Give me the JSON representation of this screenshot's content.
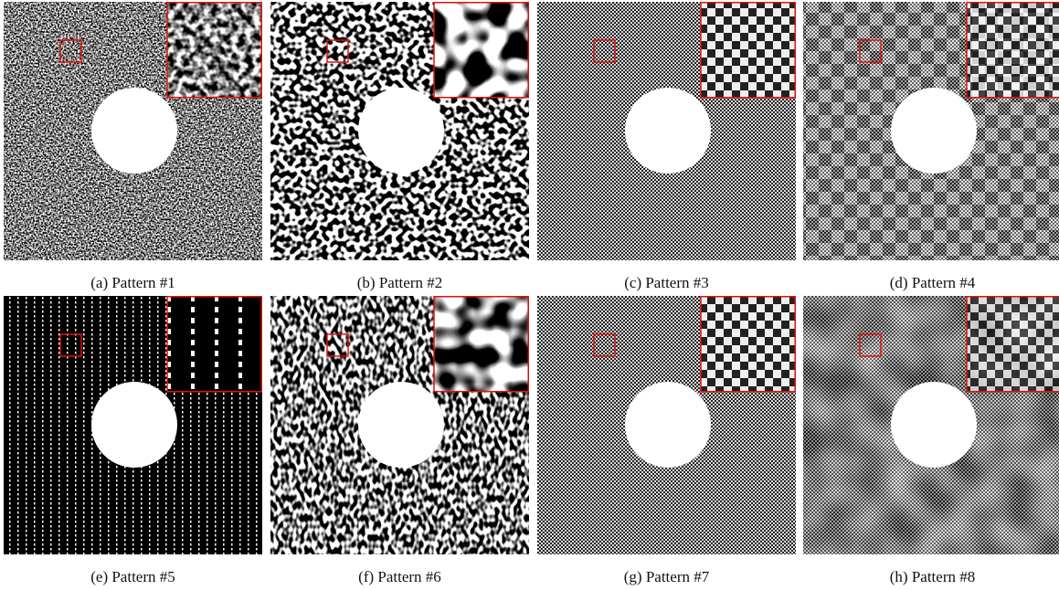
{
  "panels": [
    {
      "caption": "(a) Pattern #1"
    },
    {
      "caption": "(b) Pattern #2"
    },
    {
      "caption": "(c) Pattern #3"
    },
    {
      "caption": "(d) Pattern #4"
    },
    {
      "caption": "(e) Pattern #5"
    },
    {
      "caption": "(f) Pattern #6"
    },
    {
      "caption": "(g) Pattern #7"
    },
    {
      "caption": "(h) Pattern #8"
    }
  ]
}
